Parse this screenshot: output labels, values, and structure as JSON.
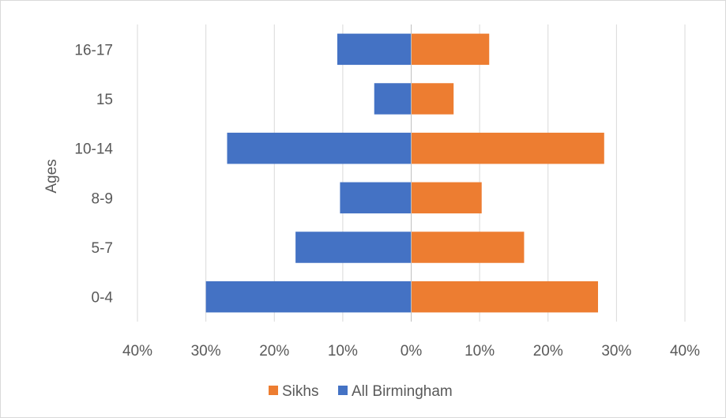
{
  "chart_data": {
    "type": "bar",
    "orientation": "horizontal",
    "layout": "diverging",
    "categories": [
      "0-4",
      "5-7",
      "8-9",
      "10-14",
      "15",
      "16-17"
    ],
    "series": [
      {
        "name": "Sikhs",
        "color": "#ed7d31",
        "side": "right",
        "values": [
          27.3,
          16.5,
          10.3,
          28.2,
          6.2,
          11.4
        ]
      },
      {
        "name": "All Birmingham",
        "color": "#4472c4",
        "side": "left",
        "values": [
          30.0,
          16.9,
          10.4,
          26.9,
          5.4,
          10.8
        ]
      }
    ],
    "xlabel": "",
    "ylabel": "Ages",
    "xlim": [
      -40,
      40
    ],
    "x_ticks": [
      -40,
      -30,
      -20,
      -10,
      0,
      10,
      20,
      30,
      40
    ],
    "x_tick_labels": [
      "40%",
      "30%",
      "20%",
      "10%",
      "0%",
      "10%",
      "20%",
      "30%",
      "40%"
    ],
    "grid": "vertical",
    "legend_position": "bottom",
    "gridline_color": "#d9d9d9",
    "axis_color": "#bfbfbf"
  }
}
